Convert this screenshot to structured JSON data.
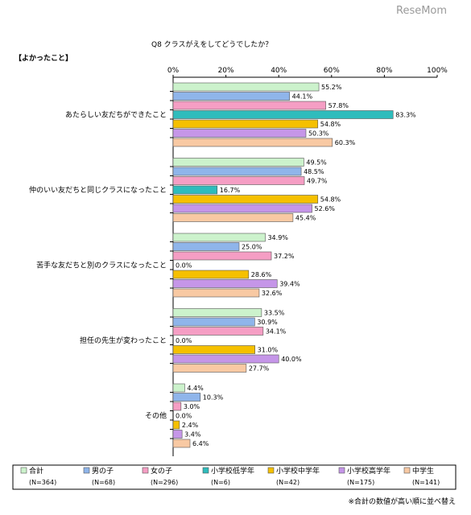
{
  "watermark": "ReseMom",
  "chart_data": {
    "type": "bar",
    "orientation": "horizontal",
    "title": "Q8 クラスがえをしてどうでしたか？",
    "section_label": "【よかったこと】",
    "xlim": [
      0,
      100
    ],
    "x_ticks": [
      "0%",
      "20%",
      "40%",
      "60%",
      "80%",
      "100%"
    ],
    "value_suffix": "%",
    "grid": false,
    "legend_position": "bottom",
    "footnote": "※合計の数値が高い順に並べ替え",
    "categories": [
      "あたらしい友だちができたこと",
      "仲のいい友だちと同じクラスになったこと",
      "苦手な友だちと別のクラスになったこと",
      "担任の先生が変わったこと",
      "その他"
    ],
    "series": [
      {
        "name": "合計",
        "n": "(N=364)",
        "color": "#ccf2cc",
        "values": [
          55.2,
          49.5,
          34.9,
          33.5,
          4.4
        ]
      },
      {
        "name": "男の子",
        "n": "(N=68)",
        "color": "#8fb5ea",
        "values": [
          44.1,
          48.5,
          25.0,
          30.9,
          10.3
        ]
      },
      {
        "name": "女の子",
        "n": "(N=296)",
        "color": "#f59ec4",
        "values": [
          57.8,
          49.7,
          37.2,
          34.1,
          3.0
        ]
      },
      {
        "name": "小学校低学年",
        "n": "(N=6)",
        "color": "#2fbcbc",
        "values": [
          83.3,
          16.7,
          0.0,
          0.0,
          0.0
        ]
      },
      {
        "name": "小学校中学年",
        "n": "(N=42)",
        "color": "#f5c000",
        "values": [
          54.8,
          54.8,
          28.6,
          31.0,
          2.4
        ]
      },
      {
        "name": "小学校高学年",
        "n": "(N=175)",
        "color": "#c596e8",
        "values": [
          50.3,
          52.6,
          39.4,
          40.0,
          3.4
        ]
      },
      {
        "name": "中学生",
        "n": "(N=141)",
        "color": "#f8c9a3",
        "values": [
          60.3,
          45.4,
          32.6,
          27.7,
          6.4
        ]
      }
    ]
  }
}
